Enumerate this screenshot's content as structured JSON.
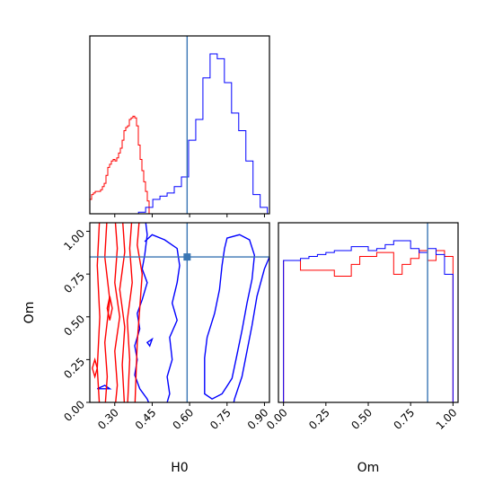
{
  "chart_data": {
    "type": "corner",
    "parameters": [
      "H0",
      "Om"
    ],
    "truths": {
      "H0": 0.59,
      "Om": 0.85
    },
    "colors": {
      "red": "#ff0000",
      "blue": "#0000ff",
      "truth": "#3a76b4"
    },
    "panels": [
      {
        "id": "H0-marginal",
        "type": "histogram",
        "xlim": [
          0.2,
          0.92
        ],
        "xticks": [
          "0.30",
          "0.45",
          "0.60",
          "0.75",
          "0.90"
        ],
        "show_xtick_labels": false,
        "show_yticks": false,
        "series": [
          {
            "color": "red",
            "x_start": 0.2,
            "x_step": 0.0072,
            "values": [
              0.09,
              0.12,
              0.13,
              0.14,
              0.14,
              0.14,
              0.15,
              0.17,
              0.19,
              0.24,
              0.29,
              0.31,
              0.33,
              0.34,
              0.33,
              0.35,
              0.38,
              0.41,
              0.46,
              0.52,
              0.54,
              0.55,
              0.59,
              0.6,
              0.61,
              0.6,
              0.55,
              0.43,
              0.34,
              0.27,
              0.2,
              0.14,
              0.08
            ]
          },
          {
            "color": "blue",
            "x_start": 0.395,
            "x_step": 0.0287,
            "values": [
              0.01,
              0.04,
              0.09,
              0.11,
              0.13,
              0.17,
              0.23,
              0.46,
              0.59,
              0.85,
              1.0,
              0.97,
              0.82,
              0.63,
              0.52,
              0.33,
              0.12,
              0.04
            ]
          }
        ]
      },
      {
        "id": "Om-vs-H0",
        "type": "contour",
        "xlabel": "H0",
        "ylabel": "Om",
        "xlim": [
          0.2,
          0.92
        ],
        "ylim": [
          0.0,
          1.05
        ],
        "xticks": [
          "0.30",
          "0.45",
          "0.60",
          "0.75",
          "0.90"
        ],
        "yticks": [
          "0.00",
          "0.25",
          "0.50",
          "0.75",
          "1.00"
        ]
      },
      {
        "id": "Om-marginal",
        "type": "histogram",
        "xlabel": "Om",
        "xlim": [
          -0.03,
          1.03
        ],
        "xticks": [
          "0.00",
          "0.25",
          "0.50",
          "0.75",
          "1.00"
        ],
        "show_yticks": false,
        "series": [
          {
            "color": "red",
            "x_start": 0.0,
            "x_step": 0.05,
            "values": [
              0.72,
              0.72,
              0.67,
              0.67,
              0.67,
              0.67,
              0.64,
              0.64,
              0.7,
              0.74,
              0.74,
              0.76,
              0.76,
              0.65,
              0.7,
              0.73,
              0.77,
              0.72,
              0.77,
              0.74
            ]
          },
          {
            "color": "blue",
            "x_start": 0.0,
            "x_step": 0.05,
            "values": [
              0.72,
              0.72,
              0.73,
              0.74,
              0.75,
              0.76,
              0.77,
              0.77,
              0.79,
              0.79,
              0.77,
              0.78,
              0.8,
              0.82,
              0.82,
              0.78,
              0.76,
              0.78,
              0.75,
              0.65
            ]
          }
        ]
      }
    ]
  }
}
